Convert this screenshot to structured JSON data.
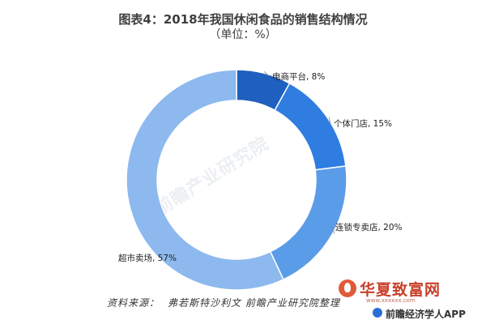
{
  "header": {
    "title": "图表4：2018年我国休闲食品的销售结构情况",
    "subtitle": "（单位：%）"
  },
  "chart_data": {
    "type": "pie",
    "variant": "donut",
    "title": "图表4：2018年我国休闲食品的销售结构情况",
    "subtitle": "（单位：%）",
    "categories": [
      "电商平台",
      "个体门店",
      "连锁专卖店",
      "超市卖场"
    ],
    "values": [
      8,
      15,
      20,
      57
    ],
    "labels": [
      "电商平台, 8%",
      "个体门店, 15%",
      "连锁专卖店, 20%",
      "超市卖场, 57%"
    ],
    "colors": [
      "#1f5fbf",
      "#2f7de0",
      "#5b9ce8",
      "#8db9ee"
    ]
  },
  "footer": {
    "source_label": "资料来源：",
    "source_text": "弗若斯特沙利文 前瞻产业研究院整理"
  },
  "watermarks": {
    "center": "前瞻产业研究院",
    "brand": "华夏致富网",
    "brand_url": "www.xxxxxx.com",
    "app": "前瞻经济学人APP"
  }
}
